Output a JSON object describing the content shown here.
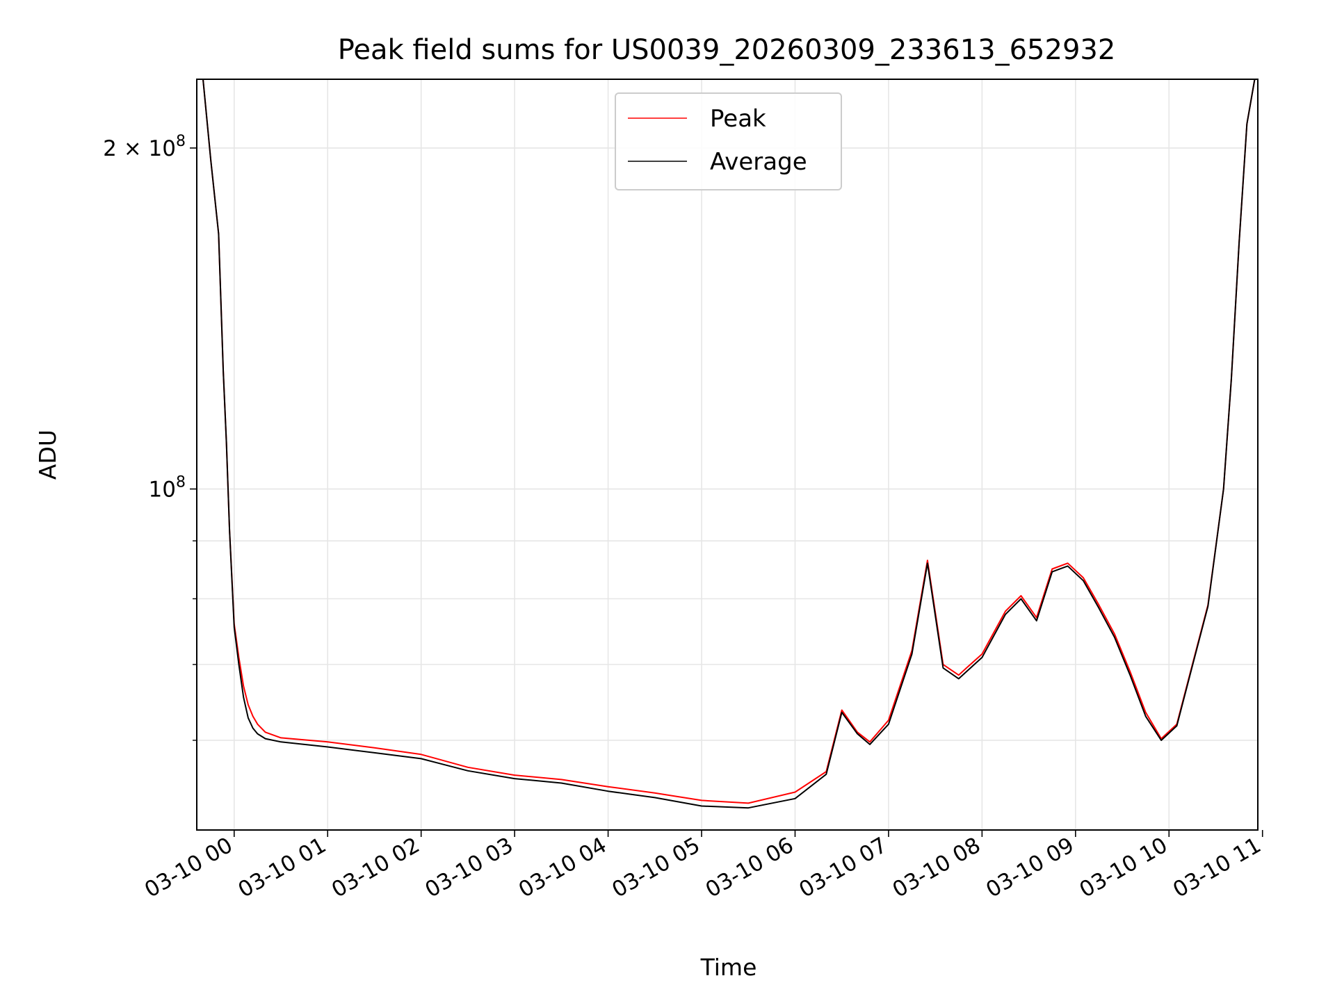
{
  "chart_data": {
    "type": "line",
    "title": "Peak field sums for US0039_20260309_233613_652932",
    "xlabel": "Time",
    "ylabel": "ADU",
    "y_scale": "log",
    "grid": true,
    "legend_position": "top-center",
    "x_range": [
      "03-09 23:36",
      "03-10 10:57"
    ],
    "ylim": [
      50000000,
      230000000
    ],
    "x_ticks": [
      "03-10 00",
      "03-10 01",
      "03-10 02",
      "03-10 03",
      "03-10 04",
      "03-10 05",
      "03-10 06",
      "03-10 07",
      "03-10 08",
      "03-10 09",
      "03-10 10",
      "03-10 11"
    ],
    "y_ticks": [
      {
        "value": 200000000,
        "label": "2 × 10^8",
        "mantissa": "2",
        "times": "×",
        "base": "10",
        "exp": "8"
      },
      {
        "value": 100000000,
        "label": "10^8",
        "mantissa": "",
        "times": "",
        "base": "10",
        "exp": "8"
      }
    ],
    "y_minor_ticks": [
      60000000,
      70000000,
      80000000,
      90000000
    ],
    "series": [
      {
        "name": "Peak",
        "color": "#ff0000",
        "x": [
          "03-09 23:40",
          "03-09 23:45",
          "03-09 23:50",
          "03-09 23:53",
          "03-09 23:55",
          "03-09 23:57",
          "03-10 00:00",
          "03-10 00:03",
          "03-10 00:06",
          "03-10 00:09",
          "03-10 00:12",
          "03-10 00:15",
          "03-10 00:20",
          "03-10 00:30",
          "03-10 01:00",
          "03-10 01:30",
          "03-10 02:00",
          "03-10 02:30",
          "03-10 03:00",
          "03-10 03:30",
          "03-10 04:00",
          "03-10 04:30",
          "03-10 05:00",
          "03-10 05:30",
          "03-10 06:00",
          "03-10 06:20",
          "03-10 06:30",
          "03-10 06:40",
          "03-10 06:48",
          "03-10 07:00",
          "03-10 07:15",
          "03-10 07:25",
          "03-10 07:35",
          "03-10 07:45",
          "03-10 07:50",
          "03-10 08:00",
          "03-10 08:15",
          "03-10 08:25",
          "03-10 08:35",
          "03-10 08:45",
          "03-10 08:55",
          "03-10 09:05",
          "03-10 09:15",
          "03-10 09:25",
          "03-10 09:35",
          "03-10 09:45",
          "03-10 09:55",
          "03-10 10:05",
          "03-10 10:15",
          "03-10 10:25",
          "03-10 10:35",
          "03-10 10:40",
          "03-10 10:45",
          "03-10 10:50",
          "03-10 10:55"
        ],
        "values": [
          230000000,
          195000000,
          168000000,
          127000000,
          110000000,
          92000000,
          76000000,
          71000000,
          67000000,
          64500000,
          63000000,
          62000000,
          61000000,
          60300000,
          59800000,
          59100000,
          58300000,
          56800000,
          55900000,
          55400000,
          54600000,
          53900000,
          53100000,
          52800000,
          54000000,
          56300000,
          63800000,
          61000000,
          59800000,
          62500000,
          72000000,
          86500000,
          70000000,
          68500000,
          69500000,
          71500000,
          78000000,
          80500000,
          77000000,
          85000000,
          86000000,
          83500000,
          79000000,
          74500000,
          69000000,
          63500000,
          60200000,
          62000000,
          70000000,
          79000000,
          100000000,
          125000000,
          165000000,
          210000000,
          230000000
        ]
      },
      {
        "name": "Average",
        "color": "#000000",
        "x": [
          "03-09 23:40",
          "03-09 23:45",
          "03-09 23:50",
          "03-09 23:53",
          "03-09 23:55",
          "03-09 23:57",
          "03-10 00:00",
          "03-10 00:03",
          "03-10 00:06",
          "03-10 00:09",
          "03-10 00:12",
          "03-10 00:15",
          "03-10 00:20",
          "03-10 00:30",
          "03-10 01:00",
          "03-10 01:30",
          "03-10 02:00",
          "03-10 02:30",
          "03-10 03:00",
          "03-10 03:30",
          "03-10 04:00",
          "03-10 04:30",
          "03-10 05:00",
          "03-10 05:30",
          "03-10 06:00",
          "03-10 06:20",
          "03-10 06:30",
          "03-10 06:40",
          "03-10 06:48",
          "03-10 07:00",
          "03-10 07:15",
          "03-10 07:25",
          "03-10 07:35",
          "03-10 07:45",
          "03-10 07:50",
          "03-10 08:00",
          "03-10 08:15",
          "03-10 08:25",
          "03-10 08:35",
          "03-10 08:45",
          "03-10 08:55",
          "03-10 09:05",
          "03-10 09:15",
          "03-10 09:25",
          "03-10 09:35",
          "03-10 09:45",
          "03-10 09:55",
          "03-10 10:05",
          "03-10 10:15",
          "03-10 10:25",
          "03-10 10:35",
          "03-10 10:40",
          "03-10 10:45",
          "03-10 10:50",
          "03-10 10:55"
        ],
        "values": [
          230000000,
          195000000,
          168000000,
          127000000,
          110000000,
          92000000,
          75500000,
          70000000,
          65500000,
          62800000,
          61500000,
          60800000,
          60200000,
          59800000,
          59200000,
          58500000,
          57800000,
          56400000,
          55500000,
          55000000,
          54100000,
          53400000,
          52500000,
          52300000,
          53300000,
          56000000,
          63500000,
          60800000,
          59500000,
          62000000,
          71500000,
          86000000,
          69500000,
          68000000,
          69000000,
          71000000,
          77500000,
          80000000,
          76500000,
          84500000,
          85500000,
          83000000,
          78500000,
          74000000,
          68500000,
          63000000,
          60000000,
          61800000,
          69800000,
          78800000,
          100000000,
          125000000,
          165000000,
          210000000,
          230000000
        ]
      }
    ]
  }
}
